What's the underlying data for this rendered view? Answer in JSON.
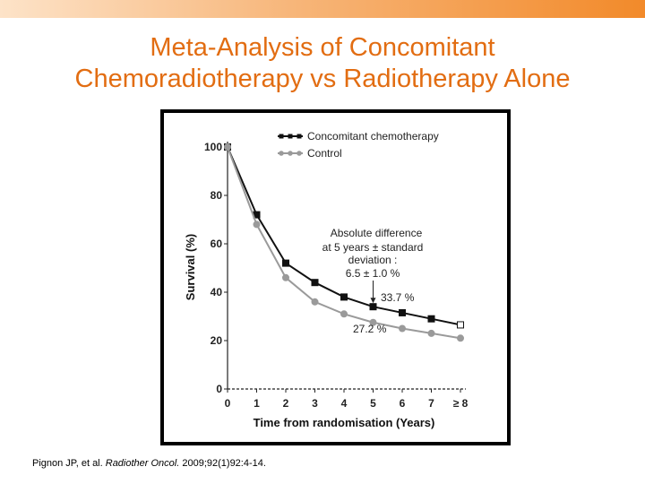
{
  "slide": {
    "title_line1": "Meta-Analysis of Concomitant",
    "title_line2": "Chemoradiotherapy vs Radiotherapy Alone",
    "citation_authors": "Pignon JP, et al.",
    "citation_journal": "Radiother Oncol.",
    "citation_rest": "2009;92(1)92:4-14.",
    "accent_color": "#e26d12"
  },
  "chart_data": {
    "type": "line",
    "title": "",
    "xlabel": "Time from randomisation (Years)",
    "ylabel": "Survival (%)",
    "categories": [
      "0",
      "1",
      "2",
      "3",
      "4",
      "5",
      "6",
      "7",
      "≥ 8"
    ],
    "x": [
      0,
      1,
      2,
      3,
      4,
      5,
      6,
      7,
      8
    ],
    "yticks": [
      "0",
      "20",
      "40",
      "60",
      "80",
      "100"
    ],
    "ylim": [
      0,
      100
    ],
    "xlim": [
      0,
      8
    ],
    "series": [
      {
        "name": "Concomitant chemotherapy",
        "color": "#111111",
        "values": [
          100,
          72,
          52,
          44,
          38,
          34,
          31.5,
          29,
          26.5
        ]
      },
      {
        "name": "Control",
        "color": "#9a9a9a",
        "values": [
          100,
          68,
          46,
          36,
          31,
          27.5,
          25,
          23,
          21
        ]
      }
    ],
    "annotations": {
      "difference_line1": "Absolute difference",
      "difference_line2": "at 5 years ± standard",
      "difference_line3": "deviation :",
      "difference_value": "6.5 ± 1.0 %",
      "chemo_5yr_label": "33.7 %",
      "control_5yr_label": "27.2 %"
    },
    "legend_position": "top"
  }
}
